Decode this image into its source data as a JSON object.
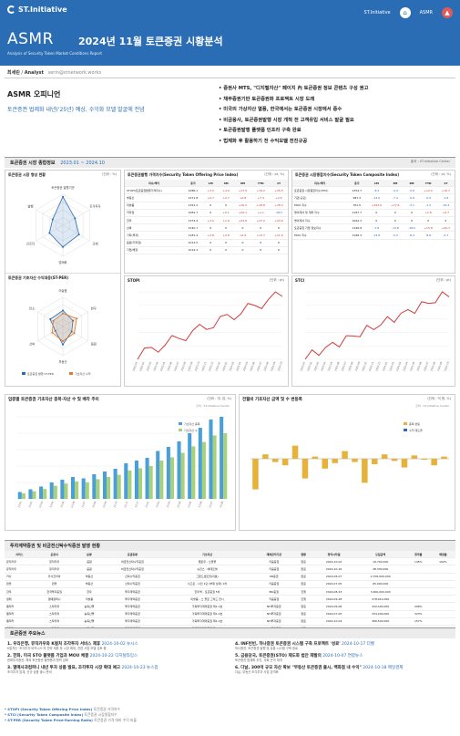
{
  "header": {
    "logo": "ST.Initiative",
    "links": [
      "ST.Initiative",
      "ASMR"
    ],
    "series": "ASMR",
    "title": "2024년 11월 토큰증권 시황분석",
    "subtitle": "Analysis of Security Token Market Conditions Report",
    "author_name": "최세린",
    "author_role": "Analyst",
    "author_email": "serin@stnetwork.works"
  },
  "opinion": {
    "heading": "ASMR 오피니언",
    "summary": "토큰증권 법제화 내년('25년) 예상, 수익화 모델 발굴에 전념",
    "bullets": [
      "증권사 MTS, \"디지털자산\" 페이지 內 토큰증권 정보 콘텐츠 구성 권고",
      "채무증권기반 토큰증권화 프로젝트 시장 도래",
      "미국의 가상자산 열풍, 한국에서는 토큰증권 시장에서 중수",
      "비금융사, 토큰증권발행 시장 개척 전 고객유입 서비스 발굴 필요",
      "토큰증권발행 플랫폼 인프라 구축 완료",
      "법제화 후 활용하기 전 수익모델 전진규공"
    ]
  },
  "market_section": {
    "title": "토큰증권 시장 종합정보",
    "period": "2023.01 ~ 2024.10",
    "source": "출처 : ST.Initiative Center"
  },
  "radar1": {
    "title": "토큰증권 시장 형성 현황",
    "unit": "(단위 : %)",
    "axes": [
      "토큰증권 발행기관",
      "조각투자",
      "규제",
      "법제화",
      "인프라",
      "발행"
    ],
    "values": [
      92,
      45,
      60,
      70,
      50,
      38
    ]
  },
  "radar2": {
    "title": "토큰증권 기초자산 수익대응(ST-PER)",
    "unit": "(단위 : %)",
    "axes": [
      "미술품",
      "한우",
      "음원",
      "부동산",
      "선박",
      "탄소"
    ],
    "series": [
      {
        "name": "토큰증권 발행 ST-PER",
        "values": [
          55,
          40,
          35,
          62,
          30,
          50
        ]
      },
      {
        "name": "기초자산 수익",
        "values": [
          45,
          55,
          45,
          50,
          42,
          38
        ]
      }
    ],
    "legend": [
      "토큰증권 발행 ST-PER",
      "기초자산 수익"
    ]
  },
  "stopi_table": {
    "title": "토큰증권발행 가격지수(Security Token Offering Price Index)",
    "unit": "(단위 : pt, %)",
    "headers": [
      "지수/섹터",
      "종가",
      "1M",
      "3M",
      "6M",
      "YTD",
      "1Y"
    ],
    "rows": [
      [
        "STOPI(토큰증권발행가격지수)",
        "1086.1",
        "+3.2",
        "+4.9",
        "+17.0",
        "+19.2",
        "+25.5"
      ],
      [
        "부동산",
        "1271.8",
        "+0.7",
        "+2.7",
        "+0.8",
        "+7.4",
        "+2.5"
      ],
      [
        "미술품",
        "1391.2",
        "0",
        "0",
        "+16.2",
        "+18.8",
        "+78.3"
      ],
      [
        "저작권",
        "1081.7",
        "0",
        "+0.1",
        "+22.1",
        "+1.1",
        "-18.5"
      ],
      [
        "한우",
        "1374.4",
        "+3.2",
        "+1.6",
        "+23.8",
        "+37.2",
        "+23.6"
      ],
      [
        "선박",
        "1240.7",
        "0",
        "0",
        "0",
        "0",
        "0"
      ],
      [
        "기타(투자)",
        "1181.4",
        "+2.8",
        "+2.8",
        "+0.9",
        "+13.7",
        "+11.4"
      ],
      [
        "음원(저작권)",
        "1012.5",
        "0",
        "0",
        "0",
        "0",
        "0"
      ],
      [
        "기업/채권",
        "1014.3",
        "0",
        "0",
        "0",
        "0",
        "0"
      ]
    ]
  },
  "stci_table": {
    "title": "토큰증권 시장종합지수(Security Token Composite Index)",
    "unit": "(단위 : pt, %)",
    "headers": [
      "지수/섹터",
      "종가",
      "1M",
      "3M",
      "6M",
      "YTD",
      "1Y"
    ],
    "rows": [
      [
        "토큰증권 시장종합지수(STCI)",
        "1354.7",
        "-8.3",
        "-4.4",
        "-0.6",
        "+12.2",
        "+10.7"
      ],
      [
        "기관(규모)",
        "981.3",
        "-13.0",
        "-7.4",
        "-0.9",
        "-0.9",
        "-1.6"
      ],
      [
        "MOU 지수",
        "761.5",
        "+343.9",
        "+77.6",
        "-3.1",
        "-1.3",
        "-33.4"
      ],
      [
        "명의개서 및 계좌 지수",
        "1187.7",
        "0",
        "0",
        "0",
        "+1.8",
        "+4.7"
      ],
      [
        "명의개서 지수",
        "1064.3",
        "0",
        "0",
        "0",
        "0",
        "0"
      ],
      [
        "토큰증권 기업 정보지수",
        "1196.8",
        "-7.8",
        "-13.8",
        "-18.0",
        "+15.8",
        "+20.7"
      ],
      [
        "MOU 지수",
        "1186.3",
        "-13.8",
        "-5.3",
        "-8.4",
        "-8.8",
        "-0.7"
      ]
    ]
  },
  "stopi_chart": {
    "title": "STOPI",
    "unit": "(단위 : pt)"
  },
  "stci_chart": {
    "title": "STCI",
    "unit": "(단위 : pt)"
  },
  "asset_chart": {
    "title": "업종별 토큰증권 기초자산 종목·자산 수 및 배각 추이",
    "unit": "(단위 : 개, 업, %)",
    "source": "출처 : ST.Initiative Center",
    "legend": [
      "기초자산 종목",
      "기초자산 수"
    ],
    "yunit": "(단위 : 개)"
  },
  "volume_chart": {
    "title": "전월비 기초자산 금액 및 수 변동폭",
    "unit": "(단위 : 억 원, %)",
    "source": "출처 : ST.Initiative Center",
    "legend": [
      "종목 변동",
      "수익 매도율"
    ]
  },
  "issuance": {
    "title": "투자계약증권 및 비금전신탁수익증권 발행 현황",
    "headers": [
      "서비스",
      "운용사",
      "분류",
      "증권종류",
      "기초자산",
      "계좌관리기관",
      "현황",
      "청약시작일",
      "모집금액",
      "청약률",
      "배정률"
    ],
    "rows": [
      [
        "뮤직카우",
        "뮤직카우",
        "음원",
        "비금전신탁수익증권",
        "옐로우 - 쏘울풀",
        "키움증권",
        "완료",
        "2024-10-02",
        "19,740,000",
        "145%",
        "100%"
      ],
      [
        "뮤직카우",
        "뮤직카우",
        "음원",
        "비금전신탁수익증권",
        "뉴진스 - 에테르넬",
        "키움증권",
        "완료",
        "2024-10-16",
        "28,330,000",
        "",
        ""
      ],
      [
        "카사",
        "카사코리아",
        "부동산",
        "신탁수익증권",
        "그랜드센트럴(지분)",
        "KB증권",
        "완료",
        "2024-06-07",
        "2,700,000,000",
        "",
        ""
      ],
      [
        "펀블",
        "펀블",
        "부동산",
        "신탁수익증권",
        "사고로 - 나인 1단 (부재 상대) 1차",
        "키움증권",
        "완료",
        "2024-07-05",
        "65,000,000",
        "",
        ""
      ],
      [
        "한우",
        "한국투자증권",
        "한우",
        "투자계약증권",
        "한우맥 - 토큰증권 5차",
        "IBK증권",
        "진행",
        "2024-08-23",
        "3,600,000,000",
        "",
        ""
      ],
      [
        "열매",
        "열매컴퍼니",
        "미술품",
        "투자계약증권",
        "미술품 - 스 플로 그리드 전시",
        "키움증권",
        "진행",
        "2024-09-28",
        "278,912,000",
        "",
        ""
      ],
      [
        "펨피커",
        "스탁키퍼",
        "농축산물",
        "투자계약증권",
        "가축투자계약증권 제1-1호",
        "NH투자증권",
        "완료",
        "2024-06-06",
        "432,400,000",
        "208%",
        ""
      ],
      [
        "펨피커",
        "스탁키퍼",
        "농축산물",
        "투자계약증권",
        "가축투자계약증권 제1-2호",
        "NH투자증권",
        "완료",
        "2024-07-05",
        "334,200,000",
        "323%",
        ""
      ],
      [
        "펨피커",
        "스탁키퍼",
        "농축산물",
        "투자계약증권",
        "가축투자계약증권 제2-1호",
        "NH투자증권",
        "완료",
        "2024-10-04",
        "366,540,000",
        "157%",
        ""
      ],
      [
        "펨피커",
        "스탁키퍼",
        "농축산물",
        "투자계약증권",
        "가축투자계약증권 제2-2호",
        "NH투자증권",
        "진행",
        "2024-10-25",
        "380,000,000",
        "",
        ""
      ]
    ]
  },
  "news": {
    "title": "토큰증권 주요뉴스",
    "items": [
      {
        "no": "1.",
        "title": "우리은행, 뮤직카우와 K컬처 조각투자 서비스 제휴",
        "date": "2024-10-02 뉴시스",
        "body": "K컬처는 '조각투자 비즈니스'의 전략 제휴 등 시장 확대, 관련 사업 모델 검토 중"
      },
      {
        "no": "2.",
        "title": "한화, 미국 STO 플랫폼 기업과 MOU 체결",
        "date": "2024-10-22 디지털타임스",
        "body": "한화투자증권, 해외 토큰증권 플랫폼과 협력 강화"
      },
      {
        "no": "3.",
        "title": "열매사과컴퍼니 내년 투자 상품 발표, 조각투자 시장 확대 예고",
        "date": "2024-10-23 뉴스핌",
        "body": "조각투자 업계, 신규 상품 출시 준비"
      },
      {
        "no": "4.",
        "title": "INF빈빈, 하나증권 토큰증권 시스템 구축 프로젝트 '성료'",
        "date": "2024-10-17 더벨",
        "body": "하나증권, 토큰증권 발행 및 유통 시스템 구축 완료"
      },
      {
        "no": "5.",
        "title": "금융당국, 토큰증권(STO) 제도화 법안 재발의",
        "date": "2024-10-07 연합뉴스",
        "body": "토큰증권 법제화 추진, 국회 논의 재개"
      },
      {
        "no": "6.",
        "title": "다날, 300억 규모 자산 확보 \"부동산 토큰증권 출시, 백화점 내 수익\"",
        "date": "2024-10-18 매일경제",
        "body": "다날, 부동산 조각투자 사업 본격화"
      }
    ]
  },
  "footnotes": [
    {
      "term": "* STOPI (Security Token Offering Price Index)",
      "desc": "토큰증권 가격지수"
    },
    {
      "term": "* STCI (Security Token Composite Index)",
      "desc": "토큰증권 시장종합지수"
    },
    {
      "term": "* ST-PER (Security Token Price-Earning Ratio)",
      "desc": "토큰증권 가격 대비 수익 비율"
    }
  ],
  "colors": {
    "brand": "#2a6db5",
    "up": "#c63232",
    "down": "#2a5fc6",
    "bar1": "#4a9fd8",
    "bar2": "#a8d27a",
    "bar3": "#e7b23a"
  }
}
